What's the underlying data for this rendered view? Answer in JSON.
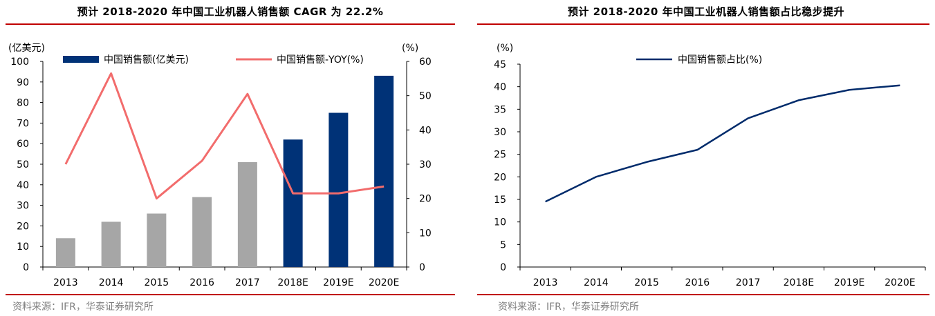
{
  "left_panel": {
    "title": "预计 2018-2020 年中国工业机器人销售额 CAGR 为 22.2%",
    "source": "资料来源：IFR，华泰证券研究所"
  },
  "right_panel": {
    "title": "预计 2018-2020 年中国工业机器人销售额占比稳步提升",
    "source": "资料来源：IFR，华泰证券研究所"
  },
  "chart_data": [
    {
      "type": "bar",
      "categories": [
        "2013",
        "2014",
        "2015",
        "2016",
        "2017",
        "2018E",
        "2019E",
        "2020E"
      ],
      "series": [
        {
          "name": "中国销售额(亿美元)",
          "type": "bar",
          "axis": "left",
          "values": [
            14,
            22,
            26,
            34,
            51,
            62,
            75,
            93
          ],
          "colors": [
            "#a6a6a6",
            "#a6a6a6",
            "#a6a6a6",
            "#a6a6a6",
            "#a6a6a6",
            "#003277",
            "#003277",
            "#003277"
          ]
        },
        {
          "name": "中国销售额-YOY(%)",
          "type": "line",
          "axis": "right",
          "values": [
            30,
            56.5,
            20,
            31,
            50.5,
            21.5,
            21.5,
            23.5
          ],
          "color": "#f26c6c"
        }
      ],
      "ylabel": "(亿美元)",
      "y2label": "(%)",
      "ylim": [
        0,
        100
      ],
      "y2lim": [
        0,
        60
      ],
      "yticks": [
        "0",
        "10",
        "20",
        "30",
        "40",
        "50",
        "60",
        "70",
        "80",
        "90",
        "100"
      ],
      "y2ticks": [
        "0",
        "10",
        "20",
        "30",
        "40",
        "50",
        "60"
      ],
      "legend_position": "top",
      "grid": false
    },
    {
      "type": "line",
      "categories": [
        "2013",
        "2014",
        "2015",
        "2016",
        "2017",
        "2018E",
        "2019E",
        "2020E"
      ],
      "series": [
        {
          "name": "中国销售额占比(%)",
          "values": [
            14.5,
            20,
            23.3,
            26,
            33,
            37,
            39.3,
            40.3
          ],
          "color": "#002b6b"
        }
      ],
      "ylabel": "(%)",
      "ylim": [
        0,
        45
      ],
      "yticks": [
        "0",
        "5",
        "10",
        "15",
        "20",
        "25",
        "30",
        "35",
        "40",
        "45"
      ],
      "legend_position": "top",
      "grid": false
    }
  ]
}
